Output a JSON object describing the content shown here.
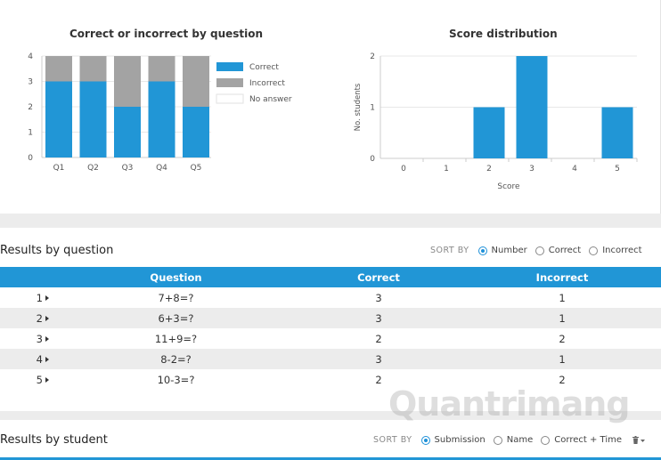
{
  "chart_data": [
    {
      "type": "bar",
      "title": "Correct or incorrect by question",
      "categories": [
        "Q1",
        "Q2",
        "Q3",
        "Q4",
        "Q5"
      ],
      "series": [
        {
          "name": "Correct",
          "values": [
            3,
            3,
            2,
            3,
            2
          ],
          "color": "#2196d6"
        },
        {
          "name": "Incorrect",
          "values": [
            1,
            1,
            2,
            1,
            2
          ],
          "color": "#a3a3a3"
        },
        {
          "name": "No answer",
          "values": [
            0,
            0,
            0,
            0,
            0
          ],
          "color": "#ffffff"
        }
      ],
      "stacked": true,
      "ylim": [
        0,
        4
      ],
      "yticks": [
        "0",
        "1",
        "2",
        "3",
        "4"
      ],
      "legend": "right"
    },
    {
      "type": "bar",
      "title": "Score distribution",
      "categories": [
        "0",
        "1",
        "2",
        "3",
        "4",
        "5"
      ],
      "values": [
        0,
        0,
        1,
        2,
        0,
        1
      ],
      "xlabel": "Score",
      "ylabel": "No. students",
      "ylim": [
        0,
        2
      ],
      "yticks": [
        "0",
        "1",
        "2"
      ],
      "color": "#2196d6"
    }
  ],
  "by_question": {
    "title": "Results by question",
    "sort_label": "SORT BY",
    "sort_options": [
      {
        "label": "Number",
        "checked": true
      },
      {
        "label": "Correct",
        "checked": false
      },
      {
        "label": "Incorrect",
        "checked": false
      }
    ],
    "columns": [
      "Question",
      "Correct",
      "Incorrect"
    ],
    "rows": [
      {
        "num": "1",
        "question": "7+8=?",
        "correct": "3",
        "incorrect": "1"
      },
      {
        "num": "2",
        "question": "6+3=?",
        "correct": "3",
        "incorrect": "1"
      },
      {
        "num": "3",
        "question": "11+9=?",
        "correct": "2",
        "incorrect": "2"
      },
      {
        "num": "4",
        "question": "8-2=?",
        "correct": "3",
        "incorrect": "1"
      },
      {
        "num": "5",
        "question": "10-3=?",
        "correct": "2",
        "incorrect": "2"
      }
    ]
  },
  "by_student": {
    "title": "Results by student",
    "sort_label": "SORT BY",
    "sort_options": [
      {
        "label": "Submission",
        "checked": true
      },
      {
        "label": "Name",
        "checked": false
      },
      {
        "label": "Correct + Time",
        "checked": false
      }
    ]
  },
  "watermark": "Quantrimang"
}
